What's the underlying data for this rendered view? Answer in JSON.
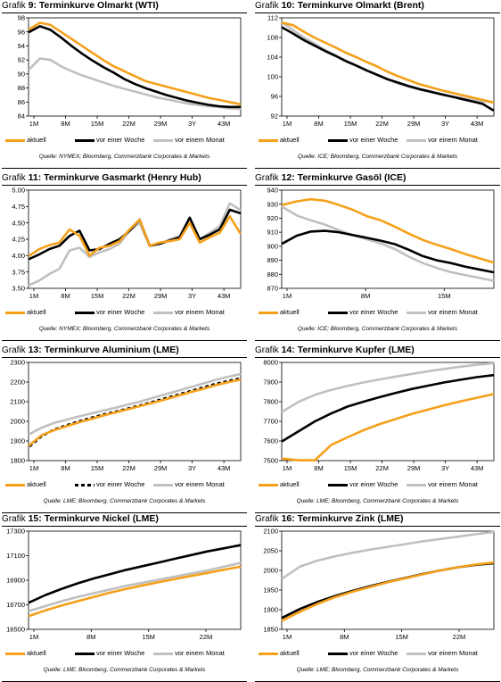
{
  "colors": {
    "current": "#f5a01a",
    "week": "#000000",
    "month": "#c0c0c0"
  },
  "chart_data": [
    {
      "type": "line",
      "prefix": "Grafik",
      "number": "9:",
      "title": "Terminkurve Olmarkt (WTI)",
      "source": "Quelle: NYMEX; Bloomberg, Commerzbank Corporates & Markets",
      "ylim": [
        84,
        98
      ],
      "yticks": [
        "98",
        "96",
        "94",
        "92",
        "90",
        "88",
        "86",
        "84"
      ],
      "xticks": [
        "1M",
        "8M",
        "15M",
        "22M",
        "29M",
        "3Y",
        "43M"
      ],
      "series": [
        {
          "name": "aktuell",
          "y": [
            96.4,
            97.3,
            97.0,
            96.0,
            95.0,
            94.0,
            93.0,
            92.0,
            91.1,
            90.4,
            89.7,
            89.0,
            88.6,
            88.2,
            87.8,
            87.4,
            87.0,
            86.6,
            86.3,
            86.0,
            85.7
          ]
        },
        {
          "name": "vor einer Woche",
          "y": [
            96.0,
            96.8,
            96.3,
            95.2,
            94.0,
            92.9,
            91.9,
            91.0,
            90.2,
            89.3,
            88.6,
            88.0,
            87.5,
            87.0,
            86.6,
            86.2,
            85.9,
            85.6,
            85.4,
            85.3,
            85.3
          ]
        },
        {
          "name": "vor einem Monat",
          "y": [
            90.7,
            92.2,
            92.0,
            91.1,
            90.4,
            89.8,
            89.3,
            88.8,
            88.3,
            87.9,
            87.5,
            87.1,
            86.7,
            86.4,
            86.1,
            85.8,
            85.6,
            85.4,
            85.3,
            85.1,
            85.0
          ]
        }
      ]
    },
    {
      "type": "line",
      "prefix": "Grafik",
      "number": "10:",
      "title": "Terminkurve Olmarkt (Brent)",
      "source": "Quelle: ICE; Bloomberg, Commerzbank Corporates & Markets",
      "ylim": [
        92,
        112
      ],
      "yticks": [
        "112",
        "108",
        "104",
        "100",
        "96",
        "92"
      ],
      "xticks": [
        "1M",
        "8M",
        "15M",
        "22M",
        "29M",
        "3Y",
        "43M"
      ],
      "series": [
        {
          "name": "aktuell",
          "y": [
            111.0,
            110.5,
            109.2,
            108.0,
            107.0,
            106.0,
            104.9,
            104.0,
            103.0,
            102.1,
            101.0,
            100.1,
            99.3,
            98.5,
            97.9,
            97.3,
            96.8,
            96.3,
            95.8,
            95.3,
            94.8
          ]
        },
        {
          "name": "vor einer Woche",
          "y": [
            110.0,
            108.8,
            107.5,
            106.4,
            105.3,
            104.3,
            103.2,
            102.3,
            101.3,
            100.4,
            99.5,
            98.8,
            98.1,
            97.5,
            97.0,
            96.5,
            96.0,
            95.5,
            95.0,
            94.5,
            93.2
          ]
        },
        {
          "name": "vor einem Monat",
          "y": [
            111.0,
            109.5,
            108.0,
            106.8,
            105.5,
            104.4,
            103.3,
            102.3,
            101.3,
            100.3,
            99.4,
            98.6,
            98.0,
            97.4,
            96.9,
            96.4,
            96.0,
            95.7,
            95.3,
            95.0,
            94.8
          ]
        }
      ]
    },
    {
      "type": "line",
      "prefix": "Grafik",
      "number": "11:",
      "title": "Terminkurve Gasmarkt (Henry Hub)",
      "source": "Quelle: NYMEX; Bloomberg, Commerzbank Corporates & Markets",
      "ylim": [
        3.5,
        5.0
      ],
      "yticks": [
        "5.00",
        "4.75",
        "4.50",
        "4.25",
        "4.00",
        "3.75",
        "3.50"
      ],
      "xticks": [
        "1M",
        "8M",
        "15M",
        "22M",
        "29M",
        "3Y",
        "43M"
      ],
      "series": [
        {
          "name": "aktuell",
          "y": [
            4.0,
            4.1,
            4.16,
            4.2,
            4.4,
            4.3,
            4.0,
            4.12,
            4.15,
            4.22,
            4.4,
            4.55,
            4.15,
            4.2,
            4.22,
            4.25,
            4.5,
            4.2,
            4.28,
            4.35,
            4.6,
            4.35
          ]
        },
        {
          "name": "vor einer Woche",
          "y": [
            3.95,
            4.02,
            4.1,
            4.15,
            4.3,
            4.38,
            4.08,
            4.1,
            4.18,
            4.25,
            4.38,
            4.55,
            4.15,
            4.18,
            4.23,
            4.28,
            4.58,
            4.25,
            4.32,
            4.4,
            4.7,
            4.65
          ]
        },
        {
          "name": "vor einem Monat",
          "y": [
            3.55,
            3.62,
            3.72,
            3.8,
            4.08,
            4.12,
            3.98,
            4.05,
            4.1,
            4.18,
            4.38,
            4.5,
            4.15,
            4.18,
            4.25,
            4.3,
            4.58,
            4.25,
            4.35,
            4.45,
            4.8,
            4.7
          ]
        }
      ]
    },
    {
      "type": "line",
      "prefix": "Grafik",
      "number": "12:",
      "title": "Terminkurve Gasöl (ICE)",
      "source": "Quelle: ICE; Bloomberg, Commerzbank Corporates & Markets",
      "ylim": [
        870,
        940
      ],
      "yticks": [
        "940",
        "930",
        "920",
        "910",
        "900",
        "890",
        "880",
        "870"
      ],
      "xticks": [
        "1M",
        "8M",
        "15M"
      ],
      "series": [
        {
          "name": "aktuell",
          "y": [
            929.5,
            932.0,
            933.5,
            932.5,
            929.5,
            926.0,
            921.5,
            918.5,
            914.0,
            909.0,
            904.5,
            901.0,
            898.0,
            894.5,
            891.5,
            888.5
          ]
        },
        {
          "name": "vor einer Woche",
          "y": [
            902.0,
            907.5,
            910.5,
            911.0,
            910.0,
            908.0,
            906.0,
            904.0,
            901.5,
            897.5,
            893.0,
            890.0,
            888.0,
            885.5,
            883.5,
            881.5
          ]
        },
        {
          "name": "vor einem Monat",
          "y": [
            928.0,
            922.0,
            918.5,
            915.5,
            911.5,
            908.0,
            905.0,
            902.0,
            898.0,
            892.5,
            888.0,
            884.5,
            881.5,
            879.5,
            877.5,
            875.5
          ]
        }
      ]
    },
    {
      "type": "line",
      "prefix": "Grafik",
      "number": "13:",
      "title": "Terminkurve Aluminium (LME)",
      "source": "Quelle: LME; Bloomberg, Commerzbank Corporates & Markets",
      "ylim": [
        1800,
        2300
      ],
      "yticks": [
        "2300",
        "2200",
        "2100",
        "2000",
        "1900",
        "1800"
      ],
      "xticks": [
        "1M",
        "8M",
        "15M",
        "22M",
        "29M",
        "3Y",
        "43M"
      ],
      "series": [
        {
          "name": "aktuell",
          "y": [
            1878,
            1930,
            1955,
            1975,
            1995,
            2012,
            2030,
            2046,
            2062,
            2078,
            2095,
            2112,
            2130,
            2148,
            2165,
            2183,
            2198,
            2212
          ]
        },
        {
          "name": "vor einer Woche",
          "y": [
            1872,
            1925,
            1958,
            1980,
            2000,
            2018,
            2035,
            2050,
            2066,
            2082,
            2100,
            2118,
            2136,
            2154,
            2172,
            2190,
            2205,
            2218
          ]
        },
        {
          "name": "vor einem Monat",
          "y": [
            1935,
            1968,
            1992,
            2008,
            2025,
            2040,
            2055,
            2070,
            2086,
            2102,
            2120,
            2138,
            2156,
            2174,
            2192,
            2210,
            2226,
            2240
          ]
        }
      ]
    },
    {
      "type": "line",
      "prefix": "Grafik",
      "number": "14:",
      "title": "Terminkurve Kupfer (LME)",
      "source": "Quelle: LME; Bloomberg, Commerzbank Corporates & Markets",
      "ylim": [
        7500,
        8000
      ],
      "yticks": [
        "8000",
        "7900",
        "7800",
        "7700",
        "7600",
        "7500"
      ],
      "xticks": [
        "1M",
        "8M",
        "15M",
        "22M",
        "29M",
        "3Y",
        "43M"
      ],
      "series": [
        {
          "name": "aktuell",
          "y": [
            7510,
            7502,
            7502,
            7580,
            7618,
            7655,
            7686,
            7712,
            7738,
            7760,
            7782,
            7802,
            7820,
            7838
          ]
        },
        {
          "name": "vor einer Woche",
          "y": [
            7600,
            7650,
            7700,
            7740,
            7775,
            7800,
            7823,
            7845,
            7865,
            7882,
            7898,
            7912,
            7925,
            7935
          ]
        },
        {
          "name": "vor einem Monat",
          "y": [
            7750,
            7800,
            7835,
            7860,
            7880,
            7898,
            7913,
            7928,
            7942,
            7955,
            7967,
            7978,
            7988,
            7995
          ]
        }
      ]
    },
    {
      "type": "line",
      "prefix": "Grafik",
      "number": "15:",
      "title": "Terminkurve Nickel (LME)",
      "source": "Quelle: LME; Bloomberg, Commerzbank Corporates & Markets",
      "ylim": [
        16500,
        17300
      ],
      "yticks": [
        "17300",
        "17100",
        "16900",
        "16700",
        "16500"
      ],
      "xticks": [
        "1M",
        "8M",
        "15M",
        "22M"
      ],
      "series": [
        {
          "name": "aktuell",
          "y": [
            16610,
            16655,
            16695,
            16730,
            16765,
            16800,
            16830,
            16858,
            16885,
            16910,
            16935,
            16960,
            16985,
            17010
          ]
        },
        {
          "name": "vor einer Woche",
          "y": [
            16720,
            16780,
            16830,
            16875,
            16915,
            16950,
            16985,
            17015,
            17045,
            17075,
            17105,
            17135,
            17160,
            17185
          ]
        },
        {
          "name": "vor einem Monat",
          "y": [
            16650,
            16690,
            16730,
            16765,
            16795,
            16825,
            16855,
            16880,
            16905,
            16930,
            16955,
            16980,
            17010,
            17040
          ]
        }
      ]
    },
    {
      "type": "line",
      "prefix": "Grafik",
      "number": "16:",
      "title": "Terminkurve Zink (LME)",
      "source": "Quelle: LME; Bloomberg, Commerzbank Corporates & Markets",
      "ylim": [
        1850,
        2100
      ],
      "yticks": [
        "2100",
        "2050",
        "2000",
        "1950",
        "1900",
        "1850"
      ],
      "xticks": [
        "1M",
        "8M",
        "15M",
        "22M"
      ],
      "series": [
        {
          "name": "aktuell",
          "y": [
            1873,
            1895,
            1915,
            1932,
            1946,
            1958,
            1970,
            1980,
            1990,
            2000,
            2008,
            2015,
            2020
          ]
        },
        {
          "name": "vor einer Woche",
          "y": [
            1880,
            1902,
            1920,
            1935,
            1948,
            1960,
            1971,
            1981,
            1991,
            2000,
            2008,
            2014,
            2018
          ]
        },
        {
          "name": "vor einem Monat",
          "y": [
            1980,
            2010,
            2025,
            2036,
            2045,
            2053,
            2060,
            2067,
            2074,
            2080,
            2086,
            2092,
            2098
          ]
        }
      ]
    }
  ],
  "legend": {
    "current": "aktuell",
    "week": "vor einer Woche",
    "month": "vor einem Monat"
  }
}
